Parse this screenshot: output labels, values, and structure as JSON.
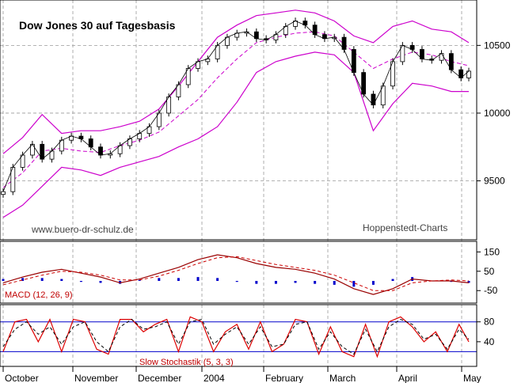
{
  "chart_data": [
    {
      "type": "candlestick",
      "title": "Dow Jones 30 auf Tagesbasis",
      "watermark": "www.buero-dr-schulz.de",
      "source": "Hoppenstedt-Charts",
      "ylim": [
        9100,
        10800
      ],
      "y_ticks": [
        "9500",
        "10000",
        "10500"
      ],
      "y_tick_values": [
        9500,
        10000,
        10500
      ],
      "grid": "dashed",
      "x_tick_labels": [
        "October",
        "November",
        "December",
        "2004",
        "February",
        "March",
        "April",
        "May"
      ],
      "series": [
        {
          "name": "close",
          "color": "#000000",
          "x": [
            0,
            5,
            10,
            15,
            20,
            25,
            30,
            35,
            40,
            45,
            50,
            55,
            60,
            65,
            70,
            75,
            80,
            85,
            90,
            95,
            100,
            105,
            110,
            115,
            120,
            125,
            130,
            135,
            140,
            145,
            150,
            155,
            160,
            165,
            170,
            175,
            180,
            185,
            190,
            195,
            200,
            205,
            210,
            215,
            220,
            225,
            230,
            235,
            239
          ],
          "values": [
            9420,
            9600,
            9690,
            9770,
            9660,
            9720,
            9800,
            9830,
            9810,
            9750,
            9690,
            9700,
            9760,
            9810,
            9850,
            9900,
            10000,
            10120,
            10210,
            10330,
            10380,
            10400,
            10500,
            10560,
            10590,
            10600,
            10550,
            10540,
            10580,
            10640,
            10680,
            10650,
            10580,
            10550,
            10560,
            10470,
            10300,
            10140,
            10060,
            10200,
            10380,
            10500,
            10470,
            10400,
            10390,
            10440,
            10320,
            10260,
            10310
          ]
        },
        {
          "name": "upper_bollinger",
          "color": "#cc00cc",
          "x": [
            0,
            10,
            20,
            30,
            40,
            50,
            60,
            70,
            80,
            90,
            100,
            110,
            120,
            130,
            140,
            150,
            160,
            170,
            180,
            190,
            200,
            210,
            220,
            230,
            239
          ],
          "values": [
            9700,
            9820,
            9990,
            9850,
            9870,
            9870,
            9900,
            9940,
            10030,
            10200,
            10380,
            10560,
            10650,
            10720,
            10740,
            10760,
            10740,
            10680,
            10570,
            10520,
            10640,
            10680,
            10620,
            10600,
            10520
          ]
        },
        {
          "name": "lower_bollinger",
          "color": "#cc00cc",
          "x": [
            0,
            10,
            20,
            30,
            40,
            50,
            60,
            70,
            80,
            90,
            100,
            110,
            120,
            130,
            140,
            150,
            160,
            170,
            180,
            190,
            200,
            210,
            220,
            230,
            239
          ],
          "values": [
            9230,
            9320,
            9460,
            9600,
            9580,
            9540,
            9600,
            9640,
            9680,
            9750,
            9810,
            9900,
            10080,
            10300,
            10380,
            10420,
            10450,
            10430,
            10300,
            9870,
            10070,
            10220,
            10200,
            10160,
            10160
          ]
        },
        {
          "name": "moving_average",
          "color": "#cc00cc",
          "x": [
            0,
            10,
            20,
            30,
            40,
            50,
            60,
            70,
            80,
            90,
            100,
            110,
            120,
            130,
            140,
            150,
            160,
            170,
            180,
            190,
            200,
            210,
            220,
            230,
            239
          ],
          "values": [
            9450,
            9560,
            9720,
            9740,
            9720,
            9710,
            9760,
            9800,
            9860,
            9980,
            10100,
            10260,
            10400,
            10520,
            10560,
            10590,
            10600,
            10570,
            10450,
            10330,
            10400,
            10450,
            10430,
            10380,
            10350
          ]
        }
      ]
    },
    {
      "type": "line",
      "label": "MACD (12, 26, 9)",
      "ylim": [
        -90,
        180
      ],
      "y_ticks": [
        "150",
        "50",
        "-50"
      ],
      "y_tick_values": [
        150,
        50,
        -50
      ],
      "series": [
        {
          "name": "macd",
          "color": "#990000",
          "x": [
            0,
            10,
            20,
            30,
            40,
            50,
            60,
            70,
            80,
            90,
            100,
            110,
            120,
            130,
            140,
            150,
            160,
            170,
            180,
            190,
            200,
            210,
            220,
            230,
            239
          ],
          "values": [
            -10,
            20,
            45,
            60,
            40,
            20,
            -10,
            10,
            40,
            70,
            110,
            135,
            120,
            90,
            70,
            60,
            40,
            10,
            -40,
            -70,
            -40,
            10,
            0,
            0,
            -10
          ]
        },
        {
          "name": "signal",
          "color": "#cc0000",
          "x": [
            0,
            10,
            20,
            30,
            40,
            50,
            60,
            70,
            80,
            90,
            100,
            110,
            120,
            130,
            140,
            150,
            160,
            170,
            180,
            190,
            200,
            210,
            220,
            230,
            239
          ],
          "values": [
            -20,
            5,
            30,
            50,
            45,
            30,
            5,
            5,
            25,
            55,
            90,
            120,
            125,
            105,
            85,
            70,
            55,
            30,
            -10,
            -50,
            -50,
            -10,
            0,
            5,
            0
          ]
        },
        {
          "name": "histogram",
          "color": "#0000cc",
          "x": [
            0,
            10,
            20,
            30,
            40,
            50,
            60,
            70,
            80,
            90,
            100,
            110,
            120,
            130,
            140,
            150,
            160,
            170,
            180,
            190,
            200,
            210,
            220,
            230,
            239
          ],
          "values": [
            10,
            15,
            15,
            10,
            -5,
            -10,
            -15,
            5,
            15,
            15,
            20,
            15,
            -5,
            -15,
            -15,
            -10,
            -15,
            -20,
            -30,
            -20,
            10,
            20,
            0,
            -5,
            -10
          ]
        }
      ]
    },
    {
      "type": "line",
      "label": "Slow Stochastik (5, 3, 3)",
      "ylim": [
        0,
        105
      ],
      "y_ticks": [
        "80",
        "40"
      ],
      "y_tick_values": [
        80,
        40
      ],
      "reference_lines": [
        80,
        20
      ],
      "series": [
        {
          "name": "%K",
          "color": "#dd0000",
          "x": [
            0,
            6,
            12,
            18,
            24,
            30,
            36,
            42,
            48,
            54,
            60,
            66,
            72,
            78,
            84,
            90,
            96,
            102,
            108,
            114,
            120,
            126,
            132,
            138,
            144,
            150,
            156,
            162,
            168,
            174,
            180,
            186,
            192,
            198,
            204,
            210,
            216,
            222,
            228,
            234,
            239
          ],
          "values": [
            20,
            80,
            85,
            40,
            85,
            20,
            85,
            80,
            25,
            15,
            85,
            85,
            60,
            75,
            85,
            20,
            90,
            80,
            20,
            60,
            75,
            25,
            80,
            20,
            35,
            85,
            80,
            15,
            70,
            20,
            10,
            75,
            10,
            80,
            90,
            70,
            40,
            60,
            20,
            75,
            40
          ]
        },
        {
          "name": "%D",
          "color": "#000000",
          "x": [
            0,
            6,
            12,
            18,
            24,
            30,
            36,
            42,
            48,
            54,
            60,
            66,
            72,
            78,
            84,
            90,
            96,
            102,
            108,
            114,
            120,
            126,
            132,
            138,
            144,
            150,
            156,
            162,
            168,
            174,
            180,
            186,
            192,
            198,
            204,
            210,
            216,
            222,
            228,
            234,
            239
          ],
          "values": [
            30,
            65,
            80,
            55,
            70,
            35,
            70,
            80,
            40,
            20,
            70,
            85,
            65,
            70,
            80,
            35,
            80,
            85,
            35,
            55,
            70,
            35,
            70,
            30,
            35,
            75,
            80,
            25,
            60,
            30,
            15,
            65,
            20,
            70,
            85,
            75,
            45,
            55,
            25,
            65,
            45
          ]
        }
      ]
    }
  ]
}
